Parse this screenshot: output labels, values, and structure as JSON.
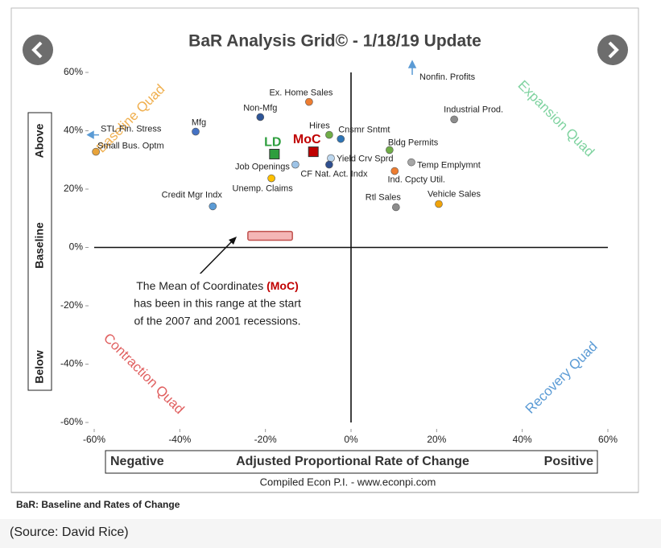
{
  "chart_data": {
    "type": "scatter",
    "title": "BaR Analysis Grid© - 1/18/19 Update",
    "xlim": [
      -60,
      60
    ],
    "ylim": [
      -60,
      60
    ],
    "xticks": [
      {
        "value": -60,
        "label": "-60%"
      },
      {
        "value": -40,
        "label": "-40%"
      },
      {
        "value": -20,
        "label": "-20%"
      },
      {
        "value": 0,
        "label": "0%"
      },
      {
        "value": 20,
        "label": "20%"
      },
      {
        "value": 40,
        "label": "40%"
      },
      {
        "value": 60,
        "label": "60%"
      }
    ],
    "yticks": [
      {
        "value": -60,
        "label": "-60%"
      },
      {
        "value": -40,
        "label": "-40%"
      },
      {
        "value": -20,
        "label": "-20%"
      },
      {
        "value": 0,
        "label": "0%"
      },
      {
        "value": 20,
        "label": "20%"
      },
      {
        "value": 40,
        "label": "40%"
      },
      {
        "value": 60,
        "label": "60%"
      }
    ],
    "series": [
      {
        "name": "STL Fin. Stress",
        "color": "#5b9bd5",
        "marker": "arrow-left",
        "x": [
          -60
        ],
        "values": [
          38.6
        ]
      },
      {
        "name": "Small Bus. Optm",
        "color": "#e8a33a",
        "marker": "circle",
        "x": [
          -59.6
        ],
        "values": [
          32.8
        ]
      },
      {
        "name": "Mfg",
        "color": "#4472c4",
        "marker": "circle",
        "x": [
          -36.3
        ],
        "values": [
          39.7
        ]
      },
      {
        "name": "Non-Mfg",
        "color": "#2e5597",
        "marker": "circle",
        "x": [
          -21.2
        ],
        "values": [
          44.7
        ]
      },
      {
        "name": "Ex. Home Sales",
        "color": "#ed7d31",
        "marker": "circle",
        "x": [
          -9.8
        ],
        "values": [
          49.9
        ]
      },
      {
        "name": "LD",
        "color": "#2e9e3e",
        "marker": "square",
        "x": [
          -17.9
        ],
        "values": [
          32.0
        ]
      },
      {
        "name": "MoC",
        "color": "#c00000",
        "marker": "square",
        "x": [
          -8.8
        ],
        "values": [
          32.8
        ]
      },
      {
        "name": "Hires",
        "color": "#70ad47",
        "marker": "circle",
        "x": [
          -5.1
        ],
        "values": [
          38.6
        ]
      },
      {
        "name": "Cnsmr Sntmt",
        "color": "#2e75b6",
        "marker": "circle",
        "x": [
          -2.4
        ],
        "values": [
          37.2
        ]
      },
      {
        "name": "Job Openings",
        "color": "#9dc3e6",
        "marker": "circle",
        "x": [
          -13.0
        ],
        "values": [
          28.4
        ]
      },
      {
        "name": "Unemp. Claims",
        "color": "#ffc000",
        "marker": "circle",
        "x": [
          -18.6
        ],
        "values": [
          23.7
        ]
      },
      {
        "name": "Yield Crv Sprd",
        "color": "#bdd7ee",
        "marker": "circle",
        "x": [
          -4.7
        ],
        "values": [
          30.6
        ]
      },
      {
        "name": "CF Nat. Act. Indx",
        "color": "#2f4f8f",
        "marker": "circle",
        "x": [
          -5.1
        ],
        "values": [
          28.4
        ]
      },
      {
        "name": "Credit Mgr Indx",
        "color": "#5b9bd5",
        "marker": "circle",
        "x": [
          -32.3
        ],
        "values": [
          14.1
        ]
      },
      {
        "name": "Industrial Prod.",
        "color": "#8c8c8c",
        "marker": "circle",
        "x": [
          24.1
        ],
        "values": [
          43.9
        ]
      },
      {
        "name": "Bldg Permits",
        "color": "#70ad47",
        "marker": "circle",
        "x": [
          9.0
        ],
        "values": [
          33.4
        ]
      },
      {
        "name": "Temp Emplymnt",
        "color": "#a6a6a6",
        "marker": "circle",
        "x": [
          14.1
        ],
        "values": [
          29.2
        ]
      },
      {
        "name": "Ind. Cpcty Util.",
        "color": "#ed7d31",
        "marker": "circle",
        "x": [
          10.2
        ],
        "values": [
          26.2
        ]
      },
      {
        "name": "Rtl Sales",
        "color": "#8c8c8c",
        "marker": "circle",
        "x": [
          10.5
        ],
        "values": [
          13.8
        ]
      },
      {
        "name": "Vehicle Sales",
        "color": "#f0a30a",
        "marker": "circle",
        "x": [
          20.5
        ],
        "values": [
          14.9
        ]
      },
      {
        "name": "Nonfin. Profits",
        "color": "#5b9bd5",
        "marker": "arrow-up",
        "x": [
          14.3
        ],
        "values": [
          60
        ]
      }
    ],
    "quadrant_labels": [
      {
        "text": "Baseline Quad",
        "color": "#f0b050"
      },
      {
        "text": "Expansion Quad",
        "color": "#7fd3a0"
      },
      {
        "text": "Contraction Quad",
        "color": "#e06060"
      },
      {
        "text": "Recovery Quad",
        "color": "#5b9bd5"
      }
    ],
    "y_axis_labels": [
      "Above",
      "Baseline",
      "Below"
    ],
    "x_axis_labels": [
      "Negative",
      "Adjusted Proportional Rate of Change",
      "Positive"
    ],
    "credit": "Compiled Econ P.I. - www.econpi.com",
    "annotation": {
      "lines": [
        "The Mean of Coordinates",
        "(MoC)",
        "has been in this range at the start",
        "of the 2007 and 2001 recessions."
      ],
      "range_x": [
        -24.1,
        -13.7
      ],
      "range_y": [
        2.5,
        5.5
      ]
    }
  },
  "footer": {
    "note": "BaR: Baseline and Rates of Change",
    "source": "(Source: David Rice)"
  }
}
